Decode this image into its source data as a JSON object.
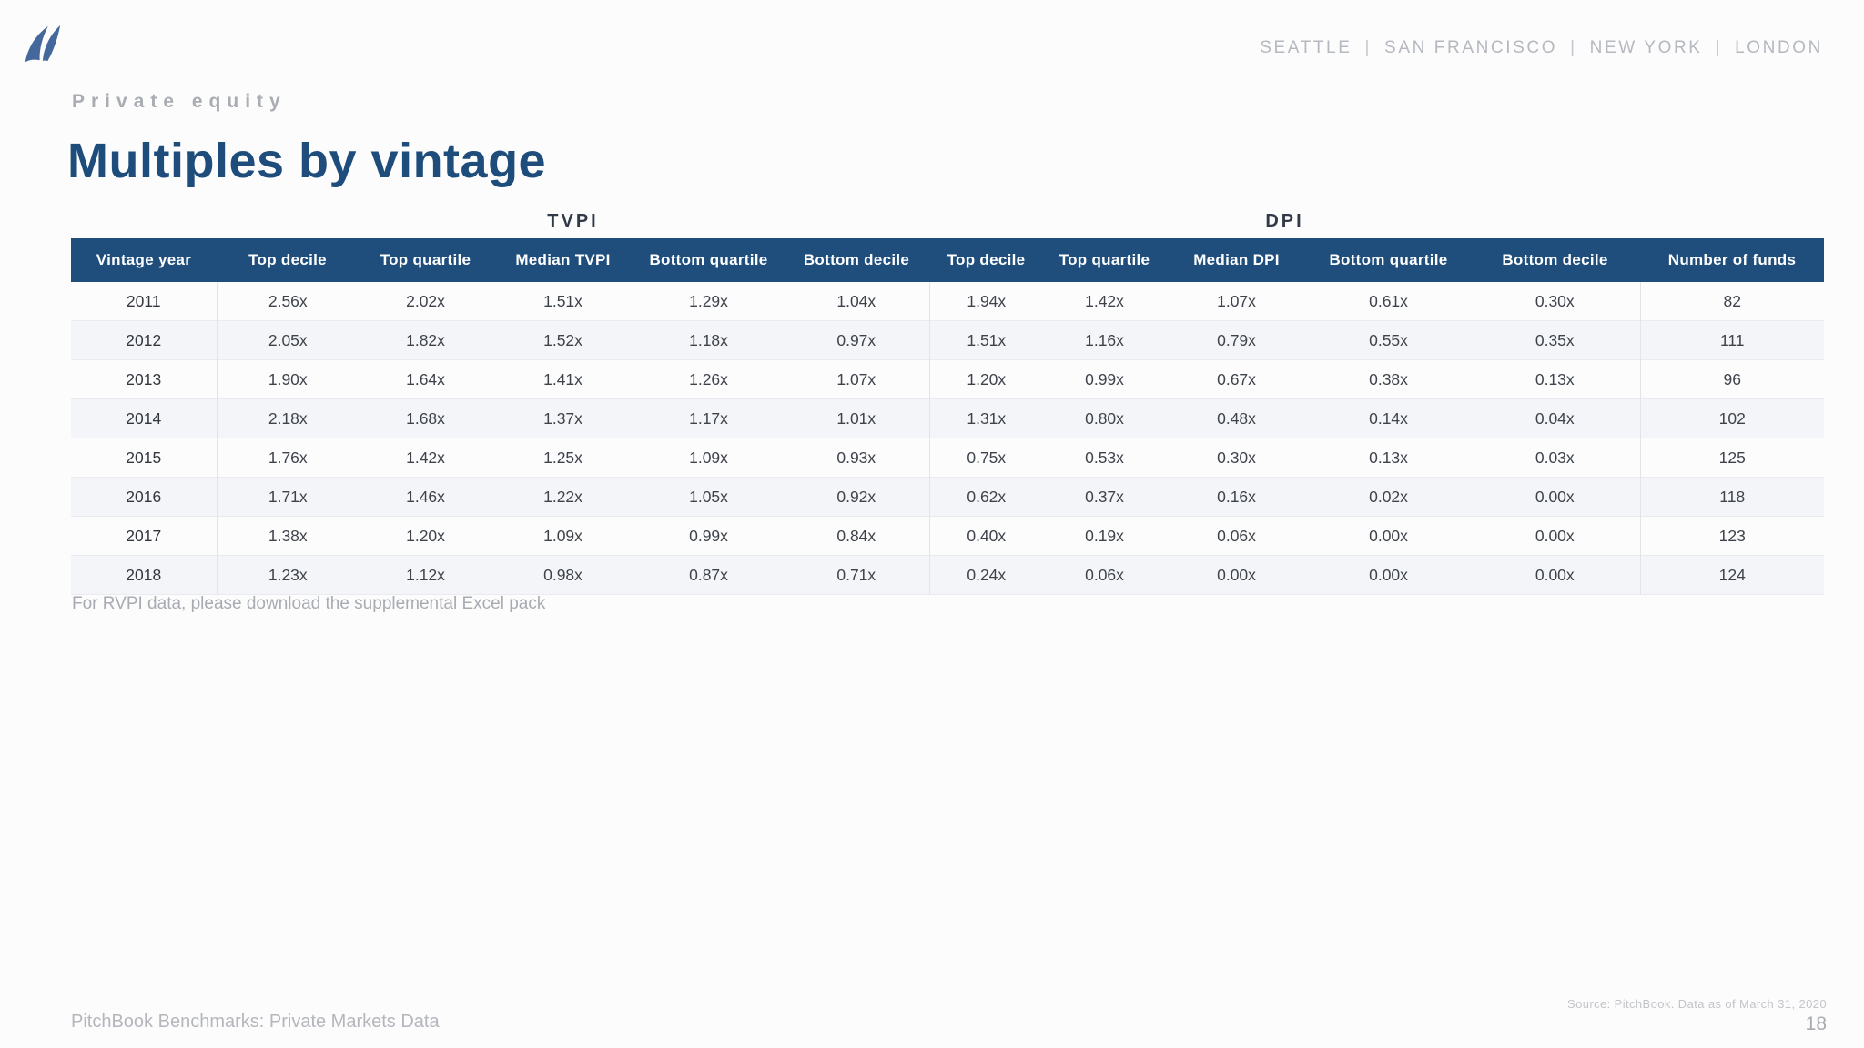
{
  "brand": {
    "logo": "pitchbook-sails-logo",
    "locations": [
      "SEATTLE",
      "SAN FRANCISCO",
      "NEW YORK",
      "LONDON"
    ],
    "location_separator": "|"
  },
  "page_header": {
    "eyebrow": "Private equity",
    "title": "Multiples by vintage"
  },
  "table": {
    "group_headers": [
      {
        "label": "TVPI",
        "columns": 5
      },
      {
        "label": "DPI",
        "columns": 5
      }
    ],
    "columns": [
      "Vintage year",
      "Top decile",
      "Top quartile",
      "Median TVPI",
      "Bottom quartile",
      "Bottom decile",
      "Top decile",
      "Top quartile",
      "Median DPI",
      "Bottom quartile",
      "Bottom decile",
      "Number of funds"
    ],
    "rows": [
      [
        "2011",
        "2.56x",
        "2.02x",
        "1.51x",
        "1.29x",
        "1.04x",
        "1.94x",
        "1.42x",
        "1.07x",
        "0.61x",
        "0.30x",
        "82"
      ],
      [
        "2012",
        "2.05x",
        "1.82x",
        "1.52x",
        "1.18x",
        "0.97x",
        "1.51x",
        "1.16x",
        "0.79x",
        "0.55x",
        "0.35x",
        "111"
      ],
      [
        "2013",
        "1.90x",
        "1.64x",
        "1.41x",
        "1.26x",
        "1.07x",
        "1.20x",
        "0.99x",
        "0.67x",
        "0.38x",
        "0.13x",
        "96"
      ],
      [
        "2014",
        "2.18x",
        "1.68x",
        "1.37x",
        "1.17x",
        "1.01x",
        "1.31x",
        "0.80x",
        "0.48x",
        "0.14x",
        "0.04x",
        "102"
      ],
      [
        "2015",
        "1.76x",
        "1.42x",
        "1.25x",
        "1.09x",
        "0.93x",
        "0.75x",
        "0.53x",
        "0.30x",
        "0.13x",
        "0.03x",
        "125"
      ],
      [
        "2016",
        "1.71x",
        "1.46x",
        "1.22x",
        "1.05x",
        "0.92x",
        "0.62x",
        "0.37x",
        "0.16x",
        "0.02x",
        "0.00x",
        "118"
      ],
      [
        "2017",
        "1.38x",
        "1.20x",
        "1.09x",
        "0.99x",
        "0.84x",
        "0.40x",
        "0.19x",
        "0.06x",
        "0.00x",
        "0.00x",
        "123"
      ],
      [
        "2018",
        "1.23x",
        "1.12x",
        "0.98x",
        "0.87x",
        "0.71x",
        "0.24x",
        "0.06x",
        "0.00x",
        "0.00x",
        "0.00x",
        "124"
      ]
    ]
  },
  "footnote": "For RVPI data, please download the supplemental Excel pack",
  "footer": {
    "left_text": "PitchBook Benchmarks: Private Markets Data",
    "source_text": "Source: PitchBook. Data as of March 31, 2020",
    "page_number": "18"
  },
  "colors": {
    "header_bg": "#1F4E7C",
    "title_blue": "#1E4D7C",
    "logo_blue": "#45689C",
    "row_stripe": "#F4F5F8",
    "row_border": "#E9EBEE",
    "muted_gray": "#AAADB3"
  }
}
